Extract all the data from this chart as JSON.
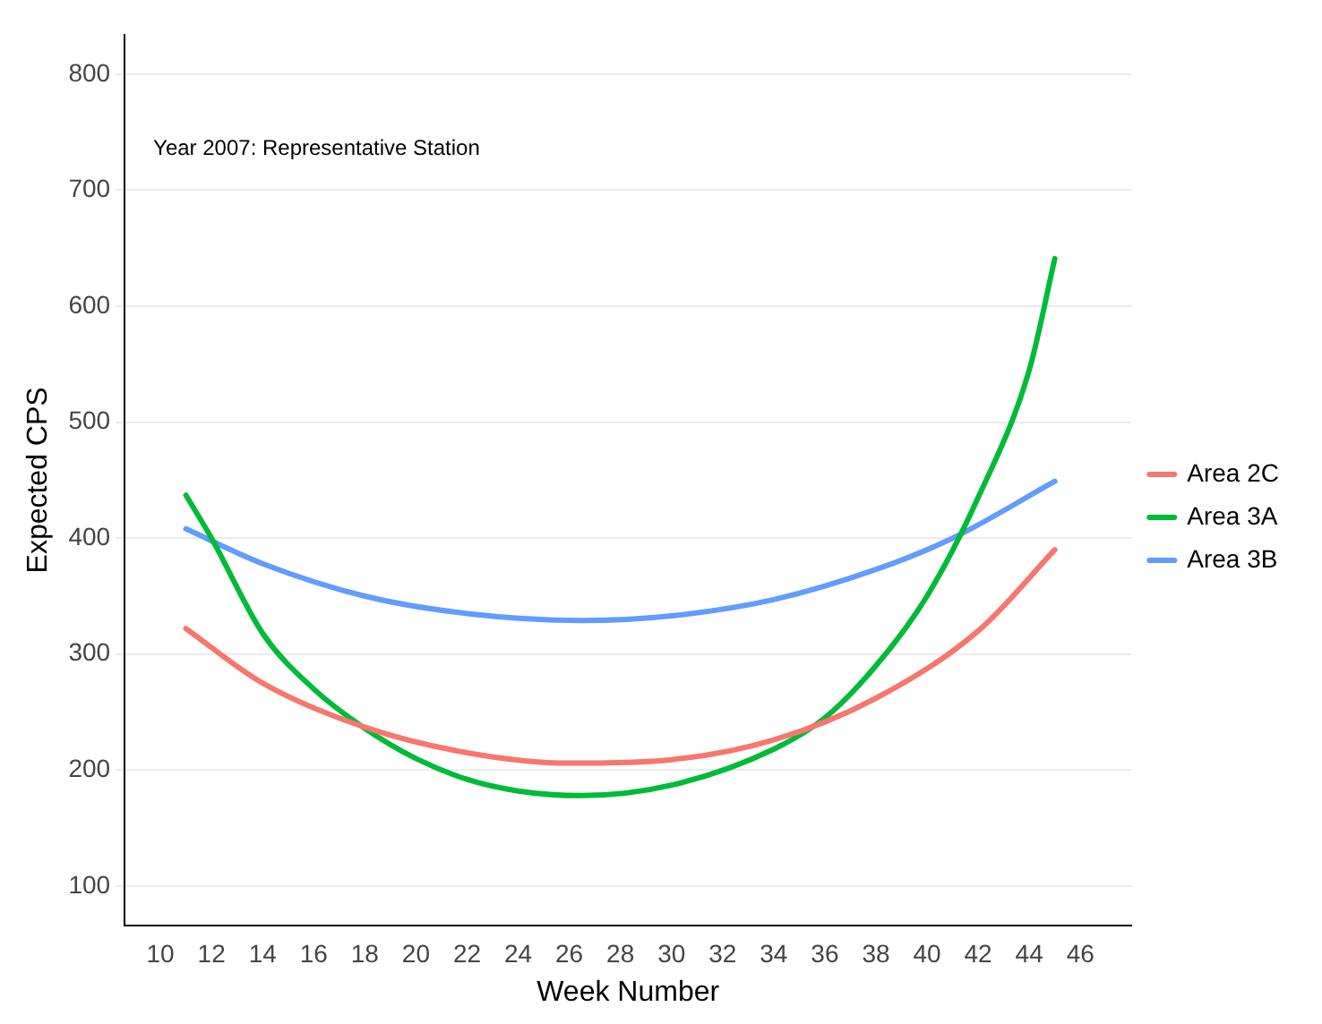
{
  "chart_data": {
    "type": "line",
    "xlabel": "Week Number",
    "ylabel": "Expected CPS",
    "annotations": [
      "Year 2007: Representative Station"
    ],
    "xlim": [
      8.6,
      48
    ],
    "xticks": [
      10,
      12,
      14,
      16,
      18,
      20,
      22,
      24,
      26,
      28,
      30,
      32,
      34,
      36,
      38,
      40,
      42,
      44,
      46
    ],
    "ylim": [
      66,
      834
    ],
    "yticks": [
      100,
      200,
      300,
      400,
      500,
      600,
      700,
      800
    ],
    "grid": "y",
    "legend": "right",
    "marker": "none",
    "line_style": "solid",
    "series": [
      {
        "name": "Area 2C",
        "color": "#f8766d",
        "x": [
          11,
          14,
          18,
          22,
          26,
          30,
          34,
          38,
          42,
          45
        ],
        "values": [
          322,
          275,
          237,
          215,
          206,
          209,
          226,
          262,
          320,
          390
        ]
      },
      {
        "name": "Area 3A",
        "color": "#00ba38",
        "x": [
          11,
          12,
          14,
          16,
          18,
          20,
          22,
          24,
          26.5,
          30,
          34,
          36,
          38,
          40,
          42,
          44,
          45
        ],
        "values": [
          437,
          400,
          318,
          270,
          236,
          210,
          192,
          182,
          178,
          187,
          218,
          245,
          290,
          350,
          435,
          545,
          641
        ]
      },
      {
        "name": "Area 3B",
        "color": "#619cff",
        "x": [
          11,
          14,
          18,
          22,
          26.5,
          30,
          34,
          38,
          41,
          45
        ],
        "values": [
          408,
          378,
          350,
          335,
          329,
          333,
          347,
          373,
          400,
          449
        ]
      }
    ]
  }
}
